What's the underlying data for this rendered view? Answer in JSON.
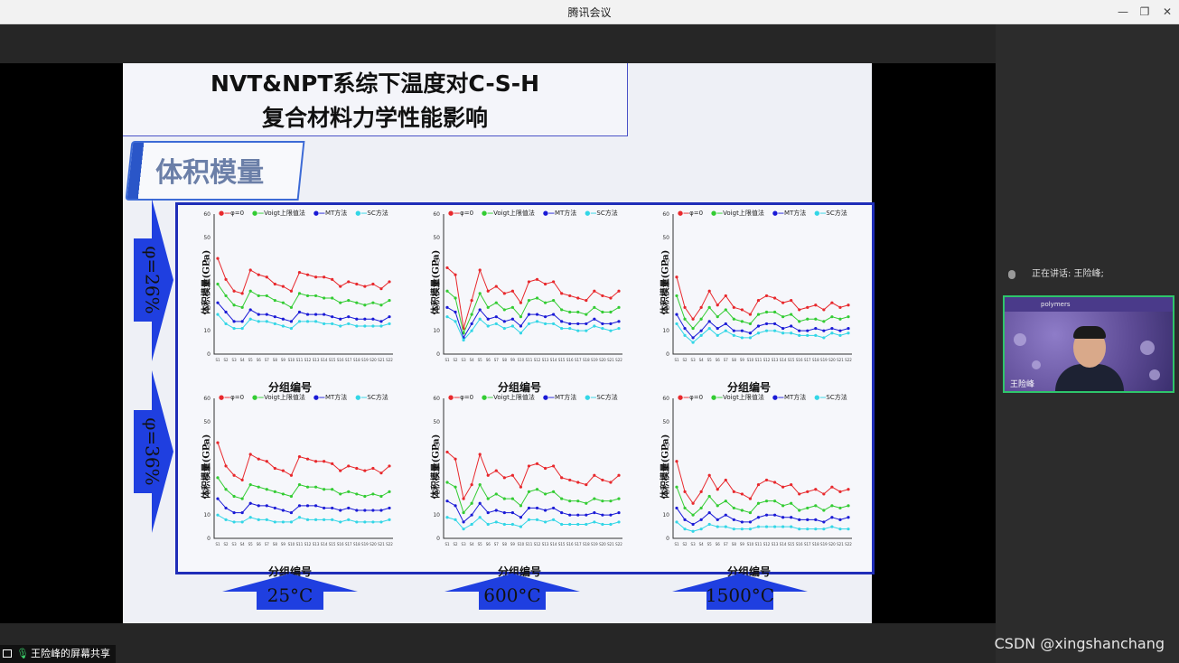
{
  "window": {
    "title": "腾讯会议"
  },
  "slide": {
    "title_line1": "NVT&NPT系综下温度对C-S-H",
    "title_line2": "复合材料力学性能影响",
    "section_label": "体积模量",
    "row_labels": [
      "φ=26%",
      "φ=36%"
    ],
    "col_labels": [
      "25°C",
      "600°C",
      "1500°C"
    ],
    "charts_shared": {
      "xlabel": "分组编号",
      "ylabel": "体积模量(GPa)",
      "legend": [
        "φ=0",
        "Voigt上限值法",
        "MT方法",
        "SC方法"
      ],
      "legend_colors": [
        "#e8282c",
        "#33cc33",
        "#1a1ad6",
        "#33d6e6"
      ]
    }
  },
  "chart_data": [
    {
      "type": "line",
      "row": "φ=26%",
      "col": "25°C",
      "ylim": [
        0,
        60
      ],
      "series": [
        {
          "name": "φ=0",
          "values": [
            41,
            32,
            27,
            26,
            36,
            34,
            33,
            30,
            29,
            27,
            35,
            34,
            33,
            33,
            32,
            29,
            31,
            30,
            29,
            30,
            28,
            31
          ]
        },
        {
          "name": "Voigt上限值法",
          "values": [
            30,
            25,
            21,
            20,
            27,
            25,
            25,
            23,
            22,
            20,
            26,
            25,
            25,
            24,
            24,
            22,
            23,
            22,
            21,
            22,
            21,
            23
          ]
        },
        {
          "name": "MT方法",
          "values": [
            22,
            18,
            14,
            14,
            19,
            17,
            17,
            16,
            15,
            14,
            18,
            17,
            17,
            17,
            16,
            15,
            16,
            15,
            15,
            15,
            14,
            16
          ]
        },
        {
          "name": "SC方法",
          "values": [
            17,
            13,
            11,
            11,
            15,
            14,
            14,
            13,
            12,
            11,
            14,
            14,
            14,
            13,
            13,
            12,
            13,
            12,
            12,
            12,
            12,
            13
          ]
        }
      ]
    },
    {
      "type": "line",
      "row": "φ=26%",
      "col": "600°C",
      "ylim": [
        0,
        60
      ],
      "series": [
        {
          "name": "φ=0",
          "values": [
            37,
            34,
            11,
            23,
            36,
            27,
            29,
            26,
            27,
            22,
            31,
            32,
            30,
            31,
            26,
            25,
            24,
            23,
            27,
            25,
            24,
            27
          ]
        },
        {
          "name": "Voigt上限值法",
          "values": [
            27,
            24,
            9,
            17,
            26,
            20,
            22,
            19,
            20,
            16,
            23,
            24,
            22,
            23,
            19,
            18,
            18,
            17,
            20,
            18,
            18,
            20
          ]
        },
        {
          "name": "MT方法",
          "values": [
            20,
            18,
            7,
            13,
            19,
            15,
            16,
            14,
            15,
            12,
            17,
            17,
            16,
            17,
            14,
            13,
            13,
            13,
            15,
            13,
            13,
            14
          ]
        },
        {
          "name": "SC方法",
          "values": [
            16,
            14,
            6,
            10,
            15,
            12,
            13,
            11,
            12,
            9,
            13,
            14,
            13,
            13,
            11,
            11,
            10,
            10,
            12,
            11,
            10,
            11
          ]
        }
      ]
    },
    {
      "type": "line",
      "row": "φ=26%",
      "col": "1500°C",
      "ylim": [
        0,
        60
      ],
      "series": [
        {
          "name": "φ=0",
          "values": [
            33,
            20,
            15,
            20,
            27,
            21,
            25,
            20,
            19,
            17,
            23,
            25,
            24,
            22,
            23,
            19,
            20,
            21,
            19,
            22,
            20,
            21
          ]
        },
        {
          "name": "Voigt上限值法",
          "values": [
            25,
            15,
            11,
            15,
            20,
            16,
            19,
            15,
            14,
            13,
            17,
            18,
            18,
            16,
            17,
            14,
            15,
            15,
            14,
            16,
            15,
            16
          ]
        },
        {
          "name": "MT方法",
          "values": [
            17,
            11,
            7,
            10,
            14,
            11,
            13,
            10,
            10,
            9,
            12,
            13,
            13,
            11,
            12,
            10,
            10,
            11,
            10,
            11,
            10,
            11
          ]
        },
        {
          "name": "SC方法",
          "values": [
            13,
            8,
            5,
            8,
            11,
            8,
            10,
            8,
            7,
            7,
            9,
            10,
            10,
            9,
            9,
            8,
            8,
            8,
            7,
            9,
            8,
            9
          ]
        }
      ]
    },
    {
      "type": "line",
      "row": "φ=36%",
      "col": "25°C",
      "ylim": [
        0,
        60
      ],
      "series": [
        {
          "name": "φ=0",
          "values": [
            41,
            31,
            27,
            25,
            36,
            34,
            33,
            30,
            29,
            27,
            35,
            34,
            33,
            33,
            32,
            29,
            31,
            30,
            29,
            30,
            28,
            31
          ]
        },
        {
          "name": "Voigt上限值法",
          "values": [
            26,
            21,
            18,
            17,
            23,
            22,
            21,
            20,
            19,
            18,
            23,
            22,
            22,
            21,
            21,
            19,
            20,
            19,
            18,
            19,
            18,
            20
          ]
        },
        {
          "name": "MT方法",
          "values": [
            17,
            13,
            11,
            11,
            15,
            14,
            14,
            13,
            12,
            11,
            14,
            14,
            14,
            13,
            13,
            12,
            13,
            12,
            12,
            12,
            12,
            13
          ]
        },
        {
          "name": "SC方法",
          "values": [
            10,
            8,
            7,
            7,
            9,
            8,
            8,
            7,
            7,
            7,
            9,
            8,
            8,
            8,
            8,
            7,
            8,
            7,
            7,
            7,
            7,
            8
          ]
        }
      ]
    },
    {
      "type": "line",
      "row": "φ=36%",
      "col": "600°C",
      "ylim": [
        0,
        60
      ],
      "series": [
        {
          "name": "φ=0",
          "values": [
            37,
            34,
            17,
            23,
            36,
            27,
            29,
            26,
            27,
            22,
            31,
            32,
            30,
            31,
            26,
            25,
            24,
            23,
            27,
            25,
            24,
            27
          ]
        },
        {
          "name": "Voigt上限值法",
          "values": [
            24,
            22,
            11,
            15,
            23,
            17,
            19,
            17,
            17,
            14,
            20,
            21,
            19,
            20,
            17,
            16,
            16,
            15,
            17,
            16,
            16,
            17
          ]
        },
        {
          "name": "MT方法",
          "values": [
            16,
            14,
            7,
            10,
            15,
            11,
            12,
            11,
            11,
            9,
            13,
            13,
            12,
            13,
            11,
            10,
            10,
            10,
            11,
            10,
            10,
            11
          ]
        },
        {
          "name": "SC方法",
          "values": [
            9,
            8,
            4,
            6,
            9,
            6,
            7,
            6,
            6,
            5,
            8,
            8,
            7,
            8,
            6,
            6,
            6,
            6,
            7,
            6,
            6,
            7
          ]
        }
      ]
    },
    {
      "type": "line",
      "row": "φ=36%",
      "col": "1500°C",
      "ylim": [
        0,
        60
      ],
      "series": [
        {
          "name": "φ=0",
          "values": [
            33,
            20,
            15,
            20,
            27,
            21,
            25,
            20,
            19,
            17,
            23,
            25,
            24,
            22,
            23,
            19,
            20,
            21,
            19,
            22,
            20,
            21
          ]
        },
        {
          "name": "Voigt上限值法",
          "values": [
            22,
            13,
            10,
            13,
            18,
            14,
            16,
            13,
            12,
            11,
            15,
            16,
            16,
            14,
            15,
            12,
            13,
            14,
            12,
            14,
            13,
            14
          ]
        },
        {
          "name": "MT方法",
          "values": [
            13,
            8,
            6,
            8,
            11,
            8,
            10,
            8,
            7,
            7,
            9,
            10,
            10,
            9,
            9,
            8,
            8,
            8,
            7,
            9,
            8,
            9
          ]
        },
        {
          "name": "SC方法",
          "values": [
            7,
            4,
            3,
            4,
            6,
            5,
            5,
            4,
            4,
            4,
            5,
            5,
            5,
            5,
            5,
            4,
            4,
            4,
            4,
            5,
            4,
            4
          ]
        }
      ]
    }
  ],
  "sidepanel": {
    "speaking_label": "正在讲话: 王险峰;",
    "participant_name": "王险峰",
    "banner_text": "polymers"
  },
  "share_bar": {
    "label": "王险峰的屏幕共享"
  },
  "watermark": "CSDN @xingshanchang"
}
